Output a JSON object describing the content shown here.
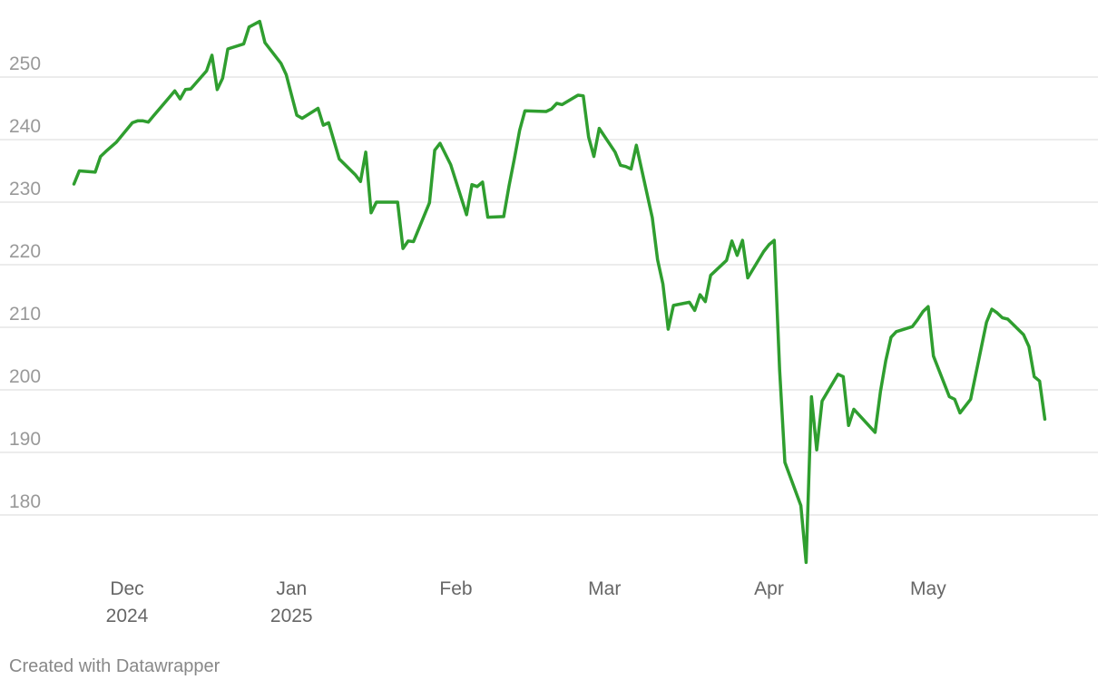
{
  "chart_data": {
    "type": "line",
    "title": "",
    "xlabel": "",
    "ylabel": "",
    "ylim": [
      170,
      260
    ],
    "yticks": [
      180,
      190,
      200,
      210,
      220,
      230,
      240,
      250
    ],
    "grid": true,
    "legend": "none",
    "xrange": [
      "2024-11-18",
      "2025-06-02"
    ],
    "xticks": [
      {
        "date": "2024-12-01",
        "label": "Dec",
        "sublabel": "2024"
      },
      {
        "date": "2025-01-01",
        "label": "Jan",
        "sublabel": "2025"
      },
      {
        "date": "2025-02-01",
        "label": "Feb",
        "sublabel": ""
      },
      {
        "date": "2025-03-01",
        "label": "Mar",
        "sublabel": ""
      },
      {
        "date": "2025-04-01",
        "label": "Apr",
        "sublabel": ""
      },
      {
        "date": "2025-05-01",
        "label": "May",
        "sublabel": ""
      }
    ],
    "series": [
      {
        "color": "#2f9e2f",
        "points": [
          [
            "2024-11-21",
            232.9
          ],
          [
            "2024-11-22",
            235.0
          ],
          [
            "2024-11-25",
            234.8
          ],
          [
            "2024-11-26",
            237.3
          ],
          [
            "2024-11-27",
            238.1
          ],
          [
            "2024-11-29",
            239.6
          ],
          [
            "2024-12-02",
            242.7
          ],
          [
            "2024-12-03",
            243.0
          ],
          [
            "2024-12-04",
            243.0
          ],
          [
            "2024-12-05",
            242.8
          ],
          [
            "2024-12-06",
            243.8
          ],
          [
            "2024-12-09",
            246.8
          ],
          [
            "2024-12-10",
            247.8
          ],
          [
            "2024-12-11",
            246.5
          ],
          [
            "2024-12-12",
            248.0
          ],
          [
            "2024-12-13",
            248.1
          ],
          [
            "2024-12-16",
            251.0
          ],
          [
            "2024-12-17",
            253.5
          ],
          [
            "2024-12-18",
            248.0
          ],
          [
            "2024-12-19",
            249.8
          ],
          [
            "2024-12-20",
            254.5
          ],
          [
            "2024-12-23",
            255.3
          ],
          [
            "2024-12-24",
            258.0
          ],
          [
            "2024-12-26",
            258.9
          ],
          [
            "2024-12-27",
            255.5
          ],
          [
            "2024-12-30",
            252.2
          ],
          [
            "2024-12-31",
            250.4
          ],
          [
            "2025-01-02",
            243.9
          ],
          [
            "2025-01-03",
            243.4
          ],
          [
            "2025-01-06",
            245.0
          ],
          [
            "2025-01-07",
            242.3
          ],
          [
            "2025-01-08",
            242.7
          ],
          [
            "2025-01-10",
            236.9
          ],
          [
            "2025-01-13",
            234.4
          ],
          [
            "2025-01-14",
            233.3
          ],
          [
            "2025-01-15",
            238.0
          ],
          [
            "2025-01-16",
            228.3
          ],
          [
            "2025-01-17",
            230.0
          ],
          [
            "2025-01-21",
            230.0
          ],
          [
            "2025-01-22",
            222.6
          ],
          [
            "2025-01-23",
            223.8
          ],
          [
            "2025-01-24",
            223.7
          ],
          [
            "2025-01-27",
            229.9
          ],
          [
            "2025-01-28",
            238.3
          ],
          [
            "2025-01-29",
            239.4
          ],
          [
            "2025-01-31",
            236.0
          ],
          [
            "2025-02-03",
            228.0
          ],
          [
            "2025-02-04",
            232.8
          ],
          [
            "2025-02-05",
            232.5
          ],
          [
            "2025-02-06",
            233.2
          ],
          [
            "2025-02-07",
            227.6
          ],
          [
            "2025-02-10",
            227.7
          ],
          [
            "2025-02-11",
            232.6
          ],
          [
            "2025-02-12",
            236.9
          ],
          [
            "2025-02-13",
            241.5
          ],
          [
            "2025-02-14",
            244.6
          ],
          [
            "2025-02-18",
            244.5
          ],
          [
            "2025-02-19",
            244.9
          ],
          [
            "2025-02-20",
            245.8
          ],
          [
            "2025-02-21",
            245.6
          ],
          [
            "2025-02-24",
            247.1
          ],
          [
            "2025-02-25",
            247.0
          ],
          [
            "2025-02-26",
            240.4
          ],
          [
            "2025-02-27",
            237.3
          ],
          [
            "2025-02-28",
            241.8
          ],
          [
            "2025-03-03",
            238.0
          ],
          [
            "2025-03-04",
            235.9
          ],
          [
            "2025-03-05",
            235.7
          ],
          [
            "2025-03-06",
            235.3
          ],
          [
            "2025-03-07",
            239.1
          ],
          [
            "2025-03-10",
            227.5
          ],
          [
            "2025-03-11",
            220.8
          ],
          [
            "2025-03-12",
            216.9
          ],
          [
            "2025-03-13",
            209.7
          ],
          [
            "2025-03-14",
            213.5
          ],
          [
            "2025-03-17",
            214.0
          ],
          [
            "2025-03-18",
            212.7
          ],
          [
            "2025-03-19",
            215.2
          ],
          [
            "2025-03-20",
            214.1
          ],
          [
            "2025-03-21",
            218.3
          ],
          [
            "2025-03-24",
            220.7
          ],
          [
            "2025-03-25",
            223.8
          ],
          [
            "2025-03-26",
            221.5
          ],
          [
            "2025-03-27",
            223.9
          ],
          [
            "2025-03-28",
            217.9
          ],
          [
            "2025-03-31",
            222.1
          ],
          [
            "2025-04-01",
            223.2
          ],
          [
            "2025-04-02",
            223.9
          ],
          [
            "2025-04-03",
            203.2
          ],
          [
            "2025-04-04",
            188.4
          ],
          [
            "2025-04-07",
            181.5
          ],
          [
            "2025-04-08",
            172.4
          ],
          [
            "2025-04-09",
            198.9
          ],
          [
            "2025-04-10",
            190.4
          ],
          [
            "2025-04-11",
            198.2
          ],
          [
            "2025-04-14",
            202.5
          ],
          [
            "2025-04-15",
            202.1
          ],
          [
            "2025-04-16",
            194.3
          ],
          [
            "2025-04-17",
            196.9
          ],
          [
            "2025-04-21",
            193.2
          ],
          [
            "2025-04-22",
            199.7
          ],
          [
            "2025-04-23",
            204.6
          ],
          [
            "2025-04-24",
            208.4
          ],
          [
            "2025-04-25",
            209.3
          ],
          [
            "2025-04-28",
            210.1
          ],
          [
            "2025-04-29",
            211.2
          ],
          [
            "2025-04-30",
            212.5
          ],
          [
            "2025-05-01",
            213.3
          ],
          [
            "2025-05-02",
            205.4
          ],
          [
            "2025-05-05",
            198.9
          ],
          [
            "2025-05-06",
            198.5
          ],
          [
            "2025-05-07",
            196.3
          ],
          [
            "2025-05-09",
            198.5
          ],
          [
            "2025-05-12",
            210.8
          ],
          [
            "2025-05-13",
            212.9
          ],
          [
            "2025-05-14",
            212.3
          ],
          [
            "2025-05-15",
            211.5
          ],
          [
            "2025-05-16",
            211.3
          ],
          [
            "2025-05-19",
            208.8
          ],
          [
            "2025-05-20",
            206.9
          ],
          [
            "2025-05-21",
            202.1
          ],
          [
            "2025-05-22",
            201.4
          ],
          [
            "2025-05-23",
            195.3
          ]
        ]
      }
    ]
  },
  "credit": "Created with Datawrapper"
}
